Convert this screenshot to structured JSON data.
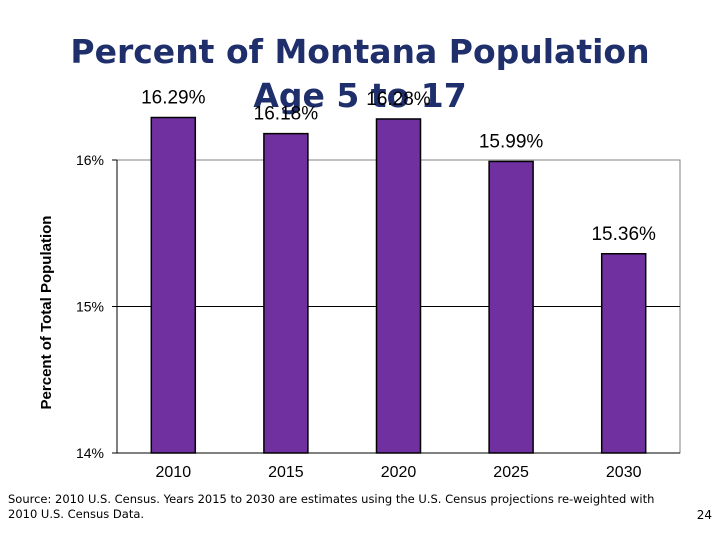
{
  "slide": {
    "title_line1": "Percent of Montana Population",
    "title_line2": "Age 5 to 17",
    "source": "Source: 2010 U.S. Census.  Years 2015 to 2030 are estimates using the U.S. Census projections re-weighted with 2010 U.S. Census Data.",
    "page_number": "24"
  },
  "chart_data": {
    "type": "bar",
    "categories": [
      "2010",
      "2015",
      "2020",
      "2025",
      "2030"
    ],
    "values": [
      16.29,
      16.18,
      16.28,
      15.99,
      15.36
    ],
    "data_labels": [
      "16.29%",
      "16.18%",
      "16.28%",
      "15.99%",
      "15.36%"
    ],
    "title": "Percent of Montana Population Age 5 to 17",
    "xlabel": "",
    "ylabel": "Percent of Total Population",
    "ylim": [
      14,
      16
    ],
    "yticks": [
      14,
      15,
      16
    ],
    "ytick_labels": [
      "14%",
      "15%",
      "16%"
    ],
    "grid": "horizontal",
    "legend": "none",
    "bar_color": "#7030a0"
  }
}
